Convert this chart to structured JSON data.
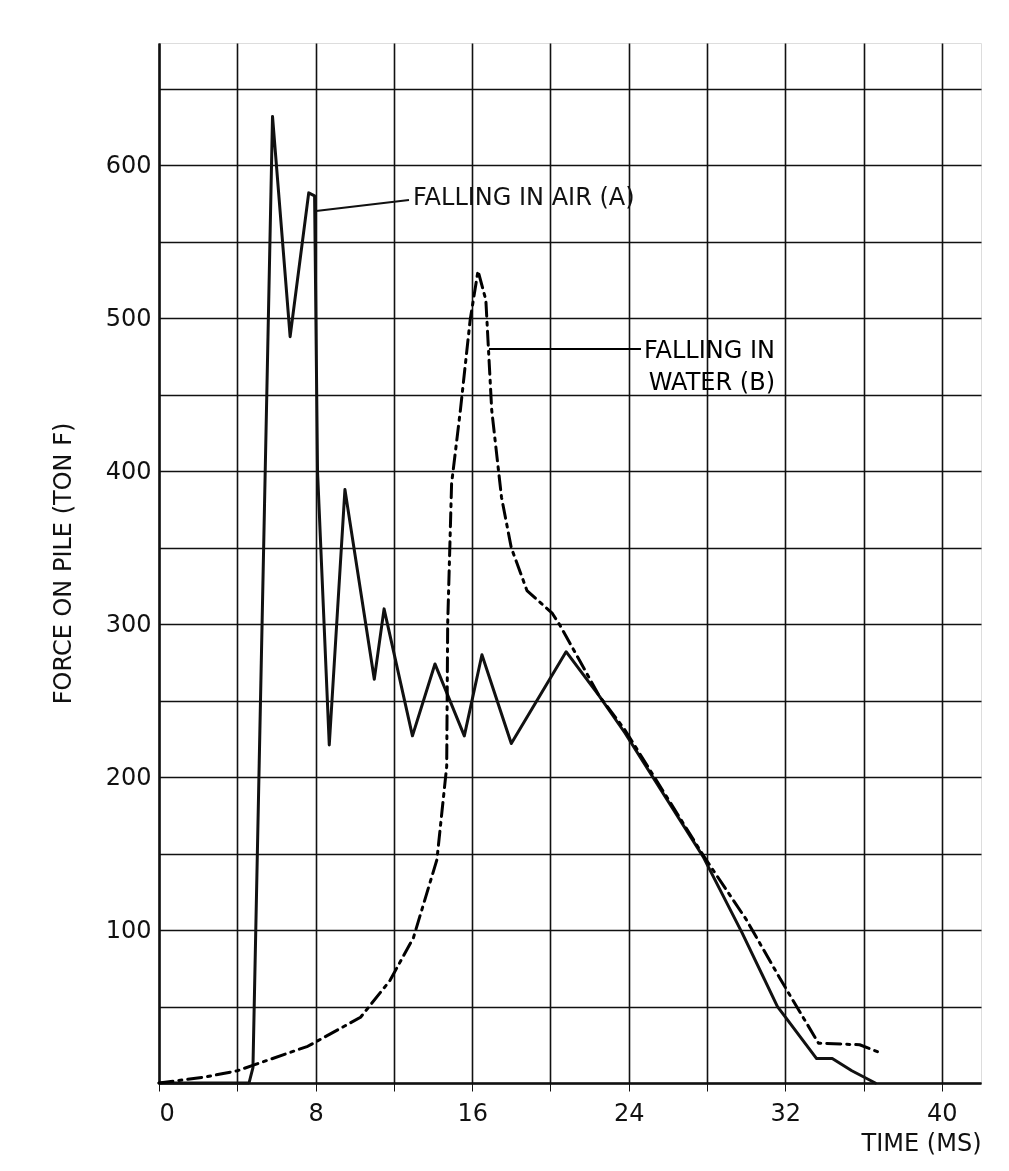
{
  "chart_data": {
    "type": "line",
    "xlabel": "TIME (MS)",
    "ylabel": "FORCE ON PILE  (TON F)",
    "xlim": [
      0,
      42
    ],
    "ylim": [
      0,
      680
    ],
    "xticks": [
      0,
      {
        "value": 4,
        "label": null
      },
      8,
      {
        "value": 12,
        "label": null
      },
      16,
      {
        "value": 20,
        "label": null
      },
      24,
      {
        "value": 28,
        "label": null
      },
      32,
      {
        "value": 36,
        "label": null
      },
      40
    ],
    "yticks": [
      {
        "value": 0,
        "label": null
      },
      {
        "value": 50,
        "label": null
      },
      100,
      {
        "value": 150,
        "label": null
      },
      200,
      {
        "value": 250,
        "label": null
      },
      300,
      {
        "value": 350,
        "label": null
      },
      400,
      {
        "value": 450,
        "label": null
      },
      500,
      {
        "value": 550,
        "label": null
      },
      600,
      {
        "value": 650,
        "label": null
      }
    ],
    "grid": true,
    "marker": "none",
    "series": [
      {
        "name": "FALLING IN AIR (A)",
        "color": "#111111",
        "line_style": "solid",
        "x": [
          0,
          4.6,
          4.8,
          5.8,
          6.7,
          7.65,
          7.95,
          8.1,
          8.7,
          9.5,
          11.0,
          11.5,
          12.95,
          14.1,
          15.6,
          16.5,
          18.0,
          20.8,
          22.5,
          23.8,
          27.8,
          29.8,
          31.6,
          33.6,
          34.4,
          35.4,
          36.6
        ],
        "values": [
          0,
          0,
          10,
          632,
          488,
          582,
          580,
          400,
          221,
          388,
          264,
          310,
          227,
          274,
          227,
          280,
          222,
          282,
          253,
          229,
          148,
          98,
          50,
          16,
          16,
          8,
          0
        ]
      },
      {
        "name": "FALLING IN\nWATER (B)",
        "color": "#000000",
        "line_style": "dashed",
        "x": [
          0,
          2.4,
          4.0,
          7.6,
          10.3,
          11.8,
          13.0,
          14.2,
          14.7,
          14.75,
          14.95,
          15.4,
          15.9,
          16.3,
          16.7,
          17.0,
          17.5,
          18.0,
          18.8,
          20.1,
          20.5,
          22.5,
          23.8,
          27.8,
          30.0,
          31.7,
          32.3,
          33.7,
          35.8,
          36.8
        ],
        "values": [
          0,
          4,
          8,
          24,
          43,
          67,
          95,
          146,
          207,
          300,
          392,
          440,
          499,
          531,
          512,
          440,
          383,
          350,
          322,
          307,
          299,
          253,
          231,
          149,
          107,
          69,
          56,
          26,
          25,
          20
        ]
      }
    ]
  }
}
